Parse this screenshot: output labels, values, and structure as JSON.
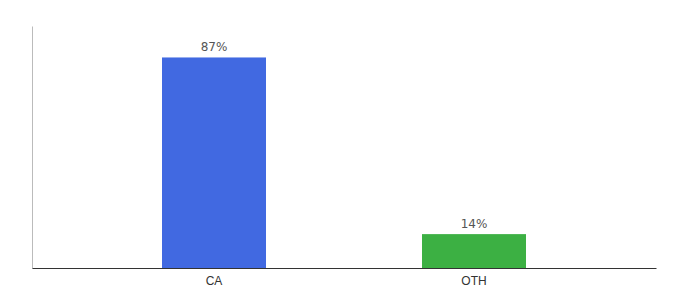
{
  "chart_data": {
    "type": "bar",
    "categories": [
      "CA",
      "OTH"
    ],
    "values": [
      87,
      14
    ],
    "value_labels": [
      "87%",
      "14%"
    ],
    "colors": [
      "#4169e1",
      "#3cb043"
    ],
    "ylim": [
      0,
      100
    ],
    "data_labels": true,
    "tick_labels": "x"
  }
}
